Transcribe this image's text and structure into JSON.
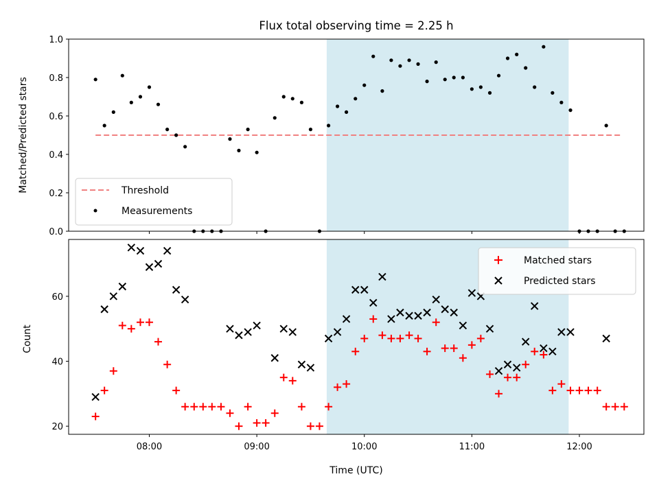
{
  "chart_data": {
    "type": "scatter",
    "title": "Flux total observing time = 2.25 h",
    "xlabel": "Time (UTC)",
    "x_ticks": [
      "08:00",
      "09:00",
      "10:00",
      "11:00",
      "12:00"
    ],
    "x_range_hours": [
      7.25,
      12.6
    ],
    "shaded_interval_hours": [
      9.65,
      11.9
    ],
    "shade_color": "#add8e6",
    "panels": [
      {
        "name": "ratio",
        "ylabel": "Matched/Predicted stars",
        "ylim": [
          0,
          1.0
        ],
        "yticks": [
          "0.0",
          "0.2",
          "0.4",
          "0.6",
          "0.8",
          "1.0"
        ],
        "threshold": {
          "label": "Threshold",
          "value": 0.5,
          "x_start": 7.5,
          "x_end": 12.4,
          "color": "#f08080"
        },
        "legend": {
          "placement": "lower-left",
          "entries": [
            "Threshold",
            "Measurements"
          ]
        },
        "series": [
          {
            "name": "Measurements",
            "color": "#000000",
            "marker": "dot",
            "x": [
              7.5,
              7.583,
              7.667,
              7.75,
              7.833,
              7.917,
              8.0,
              8.083,
              8.167,
              8.25,
              8.333,
              8.417,
              8.5,
              8.583,
              8.667,
              8.75,
              8.833,
              8.917,
              9.0,
              9.083,
              9.167,
              9.25,
              9.333,
              9.417,
              9.5,
              9.583,
              9.667,
              9.75,
              9.833,
              9.917,
              10.0,
              10.083,
              10.167,
              10.25,
              10.333,
              10.417,
              10.5,
              10.583,
              10.667,
              10.75,
              10.833,
              10.917,
              11.0,
              11.083,
              11.167,
              11.25,
              11.333,
              11.417,
              11.5,
              11.583,
              11.667,
              11.75,
              11.833,
              11.917,
              12.0,
              12.083,
              12.167,
              12.25,
              12.333,
              12.417
            ],
            "y": [
              0.79,
              0.55,
              0.62,
              0.81,
              0.67,
              0.7,
              0.75,
              0.66,
              0.53,
              0.5,
              0.44,
              0.0,
              0.0,
              0.0,
              0.0,
              0.48,
              0.42,
              0.53,
              0.41,
              0.0,
              0.59,
              0.7,
              0.69,
              0.67,
              0.53,
              0.0,
              0.55,
              0.65,
              0.62,
              0.69,
              0.76,
              0.91,
              0.73,
              0.89,
              0.86,
              0.89,
              0.87,
              0.78,
              0.88,
              0.79,
              0.8,
              0.8,
              0.74,
              0.75,
              0.72,
              0.81,
              0.9,
              0.92,
              0.85,
              0.75,
              0.96,
              0.72,
              0.67,
              0.63,
              0.0,
              0.0,
              0.0,
              0.55,
              0.0,
              0.0
            ]
          }
        ]
      },
      {
        "name": "counts",
        "ylabel": "Count",
        "ylim": [
          17.5,
          77.5
        ],
        "yticks": [
          "20",
          "40",
          "60"
        ],
        "legend": {
          "placement": "top-right",
          "entries": [
            "Matched stars",
            "Predicted stars"
          ]
        },
        "series": [
          {
            "name": "Matched stars",
            "color": "#ff0000",
            "marker": "plus",
            "x": [
              7.5,
              7.583,
              7.667,
              7.75,
              7.833,
              7.917,
              8.0,
              8.083,
              8.167,
              8.25,
              8.333,
              8.417,
              8.5,
              8.583,
              8.667,
              8.75,
              8.833,
              8.917,
              9.0,
              9.083,
              9.167,
              9.25,
              9.333,
              9.417,
              9.5,
              9.583,
              9.667,
              9.75,
              9.833,
              9.917,
              10.0,
              10.083,
              10.167,
              10.25,
              10.333,
              10.417,
              10.5,
              10.583,
              10.667,
              10.75,
              10.833,
              10.917,
              11.0,
              11.083,
              11.167,
              11.25,
              11.333,
              11.417,
              11.5,
              11.583,
              11.667,
              11.75,
              11.833,
              11.917,
              12.0,
              12.083,
              12.167,
              12.25,
              12.333,
              12.417
            ],
            "y": [
              23,
              31,
              37,
              51,
              50,
              52,
              52,
              46,
              39,
              31,
              26,
              26,
              26,
              26,
              26,
              24,
              20,
              26,
              21,
              21,
              24,
              35,
              34,
              26,
              20,
              20,
              26,
              32,
              33,
              43,
              47,
              53,
              48,
              47,
              47,
              48,
              47,
              43,
              52,
              44,
              44,
              41,
              45,
              47,
              36,
              30,
              35,
              35,
              39,
              43,
              42,
              31,
              33,
              31,
              31,
              31,
              31,
              26,
              26,
              26
            ]
          },
          {
            "name": "Predicted stars",
            "color": "#000000",
            "marker": "x",
            "x": [
              7.5,
              7.583,
              7.667,
              7.75,
              7.833,
              7.917,
              8.0,
              8.083,
              8.167,
              8.25,
              8.333,
              8.75,
              8.833,
              8.917,
              9.0,
              9.167,
              9.25,
              9.333,
              9.417,
              9.5,
              9.667,
              9.75,
              9.833,
              9.917,
              10.0,
              10.083,
              10.167,
              10.25,
              10.333,
              10.417,
              10.5,
              10.583,
              10.667,
              10.75,
              10.833,
              10.917,
              11.0,
              11.083,
              11.167,
              11.25,
              11.333,
              11.417,
              11.5,
              11.583,
              11.667,
              11.75,
              11.833,
              11.917,
              12.25
            ],
            "y": [
              29,
              56,
              60,
              63,
              75,
              74,
              69,
              70,
              74,
              62,
              59,
              50,
              48,
              49,
              51,
              41,
              50,
              49,
              39,
              38,
              47,
              49,
              53,
              62,
              62,
              58,
              66,
              53,
              55,
              54,
              54,
              55,
              59,
              56,
              55,
              51,
              61,
              60,
              50,
              37,
              39,
              38,
              46,
              57,
              44,
              43,
              49,
              49,
              47
            ]
          }
        ]
      }
    ]
  }
}
